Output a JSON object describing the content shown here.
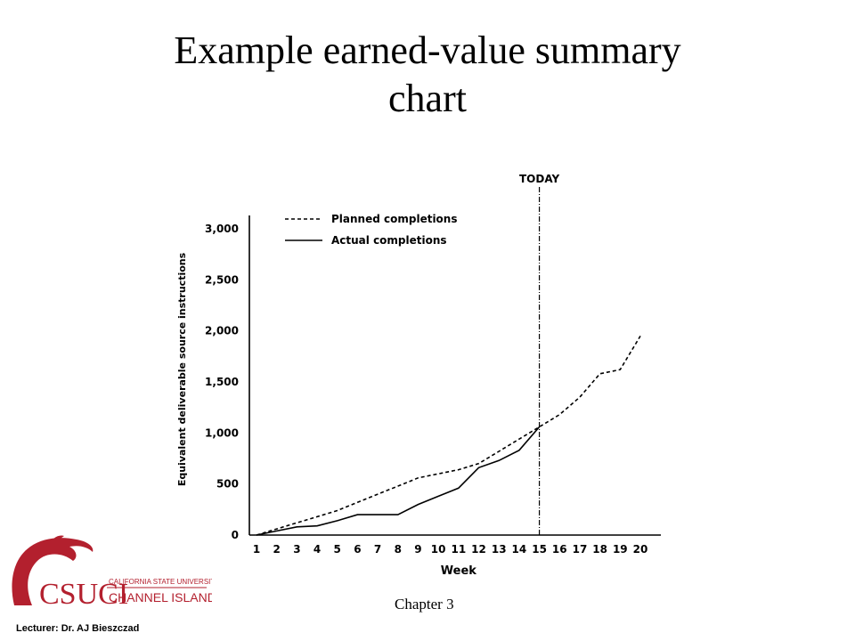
{
  "slide": {
    "title_line1": "Example earned-value summary",
    "title_line2": "chart",
    "footer_chapter": "Chapter 3",
    "footer_lecturer": "Lecturer: Dr. AJ Bieszczad",
    "logo_text_line1": "CALIFORNIA STATE UNIVERSITY",
    "logo_text_line2": "CHANNEL ISLANDS",
    "logo_monogram": "CSUCI"
  },
  "colors": {
    "logo_red": "#b3202e",
    "ink": "#000000"
  },
  "chart_data": {
    "type": "line",
    "title": "",
    "xlabel": "Week",
    "ylabel": "Equivalent deliverable source instructions",
    "xlim": [
      1,
      20
    ],
    "ylim": [
      0,
      3000
    ],
    "x_ticks": [
      1,
      2,
      3,
      4,
      5,
      6,
      7,
      8,
      9,
      10,
      11,
      12,
      13,
      14,
      15,
      16,
      17,
      18,
      19,
      20
    ],
    "y_ticks": [
      0,
      500,
      1000,
      1500,
      2000,
      2500,
      3000
    ],
    "y_tick_labels": [
      "0",
      "500",
      "1,000",
      "1,500",
      "2,000",
      "2,500",
      "3,000"
    ],
    "legend_position": "top-left",
    "grid": false,
    "annotation": {
      "label": "TODAY",
      "x": 15
    },
    "series": [
      {
        "name": "Planned completions",
        "style": "dashed",
        "x": [
          1,
          2,
          3,
          4,
          5,
          6,
          7,
          8,
          9,
          10,
          11,
          12,
          13,
          14,
          15,
          16,
          17,
          18,
          19,
          20
        ],
        "y": [
          0,
          60,
          120,
          180,
          240,
          320,
          400,
          480,
          560,
          600,
          640,
          700,
          820,
          940,
          1060,
          1180,
          1350,
          1580,
          1620,
          1950
        ]
      },
      {
        "name": "Actual completions",
        "style": "solid",
        "x": [
          1,
          2,
          3,
          4,
          5,
          6,
          7,
          8,
          9,
          10,
          11,
          12,
          13,
          14,
          15
        ],
        "y": [
          0,
          40,
          80,
          90,
          140,
          200,
          200,
          200,
          300,
          380,
          460,
          660,
          730,
          830,
          1060
        ]
      }
    ]
  }
}
